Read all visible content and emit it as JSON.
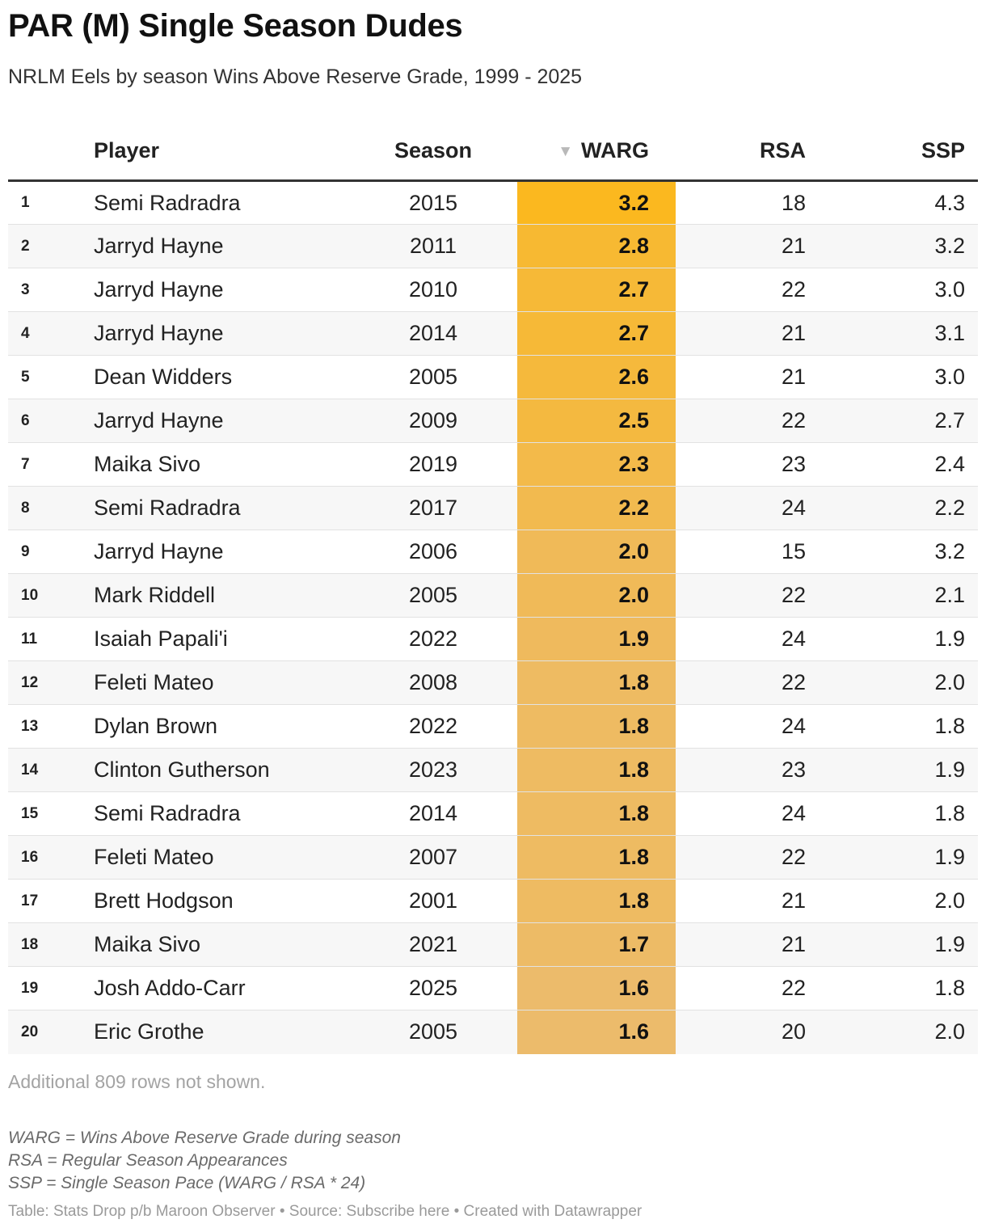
{
  "title": "PAR (M) Single Season Dudes",
  "subtitle": "NRLM Eels by season Wins Above Reserve Grade, 1999 - 2025",
  "table": {
    "headers": {
      "rank": "",
      "player": "Player",
      "season": "Season",
      "warg": "WARG",
      "rsa": "RSA",
      "ssp": "SSP"
    },
    "sort_indicator": "▼",
    "sorted_column": "WARG",
    "sort_direction": "descending"
  },
  "colors": {
    "warg_max": "#fbb81f",
    "warg_min": "#ecbb6b",
    "row_alt": "#f7f7f7",
    "header_rule": "#333333"
  },
  "chart_data": {
    "type": "table",
    "columns": [
      "",
      "Player",
      "Season",
      "WARG",
      "RSA",
      "SSP"
    ],
    "rows": [
      {
        "rank": "1",
        "player": "Semi Radradra",
        "season": "2015",
        "warg": 3.2,
        "warg_text": "3.2",
        "rsa": "18",
        "ssp": "4.3"
      },
      {
        "rank": "2",
        "player": "Jarryd Hayne",
        "season": "2011",
        "warg": 2.8,
        "warg_text": "2.8",
        "rsa": "21",
        "ssp": "3.2"
      },
      {
        "rank": "3",
        "player": "Jarryd Hayne",
        "season": "2010",
        "warg": 2.7,
        "warg_text": "2.7",
        "rsa": "22",
        "ssp": "3.0"
      },
      {
        "rank": "4",
        "player": "Jarryd Hayne",
        "season": "2014",
        "warg": 2.7,
        "warg_text": "2.7",
        "rsa": "21",
        "ssp": "3.1"
      },
      {
        "rank": "5",
        "player": "Dean Widders",
        "season": "2005",
        "warg": 2.6,
        "warg_text": "2.6",
        "rsa": "21",
        "ssp": "3.0"
      },
      {
        "rank": "6",
        "player": "Jarryd Hayne",
        "season": "2009",
        "warg": 2.5,
        "warg_text": "2.5",
        "rsa": "22",
        "ssp": "2.7"
      },
      {
        "rank": "7",
        "player": "Maika Sivo",
        "season": "2019",
        "warg": 2.3,
        "warg_text": "2.3",
        "rsa": "23",
        "ssp": "2.4"
      },
      {
        "rank": "8",
        "player": "Semi Radradra",
        "season": "2017",
        "warg": 2.2,
        "warg_text": "2.2",
        "rsa": "24",
        "ssp": "2.2"
      },
      {
        "rank": "9",
        "player": "Jarryd Hayne",
        "season": "2006",
        "warg": 2.0,
        "warg_text": "2.0",
        "rsa": "15",
        "ssp": "3.2"
      },
      {
        "rank": "10",
        "player": "Mark Riddell",
        "season": "2005",
        "warg": 2.0,
        "warg_text": "2.0",
        "rsa": "22",
        "ssp": "2.1"
      },
      {
        "rank": "11",
        "player": "Isaiah Papali'i",
        "season": "2022",
        "warg": 1.9,
        "warg_text": "1.9",
        "rsa": "24",
        "ssp": "1.9"
      },
      {
        "rank": "12",
        "player": "Feleti Mateo",
        "season": "2008",
        "warg": 1.8,
        "warg_text": "1.8",
        "rsa": "22",
        "ssp": "2.0"
      },
      {
        "rank": "13",
        "player": "Dylan Brown",
        "season": "2022",
        "warg": 1.8,
        "warg_text": "1.8",
        "rsa": "24",
        "ssp": "1.8"
      },
      {
        "rank": "14",
        "player": "Clinton Gutherson",
        "season": "2023",
        "warg": 1.8,
        "warg_text": "1.8",
        "rsa": "23",
        "ssp": "1.9"
      },
      {
        "rank": "15",
        "player": "Semi Radradra",
        "season": "2014",
        "warg": 1.8,
        "warg_text": "1.8",
        "rsa": "24",
        "ssp": "1.8"
      },
      {
        "rank": "16",
        "player": "Feleti Mateo",
        "season": "2007",
        "warg": 1.8,
        "warg_text": "1.8",
        "rsa": "22",
        "ssp": "1.9"
      },
      {
        "rank": "17",
        "player": "Brett Hodgson",
        "season": "2001",
        "warg": 1.8,
        "warg_text": "1.8",
        "rsa": "21",
        "ssp": "2.0"
      },
      {
        "rank": "18",
        "player": "Maika Sivo",
        "season": "2021",
        "warg": 1.7,
        "warg_text": "1.7",
        "rsa": "21",
        "ssp": "1.9"
      },
      {
        "rank": "19",
        "player": "Josh Addo-Carr",
        "season": "2025",
        "warg": 1.6,
        "warg_text": "1.6",
        "rsa": "22",
        "ssp": "1.8"
      },
      {
        "rank": "20",
        "player": "Eric Grothe",
        "season": "2005",
        "warg": 1.6,
        "warg_text": "1.6",
        "rsa": "20",
        "ssp": "2.0"
      }
    ]
  },
  "more_rows_text": "Additional 809 rows not shown.",
  "notes": [
    "WARG = Wins Above Reserve Grade during season",
    "RSA = Regular Season Appearances",
    "SSP = Single Season Pace (WARG / RSA * 24)"
  ],
  "footer": {
    "table_credit": "Table: Stats Drop p/b Maroon Observer",
    "separator": "•",
    "source_label": "Source:",
    "source_link": "Subscribe here",
    "created_with": "Created with Datawrapper"
  }
}
